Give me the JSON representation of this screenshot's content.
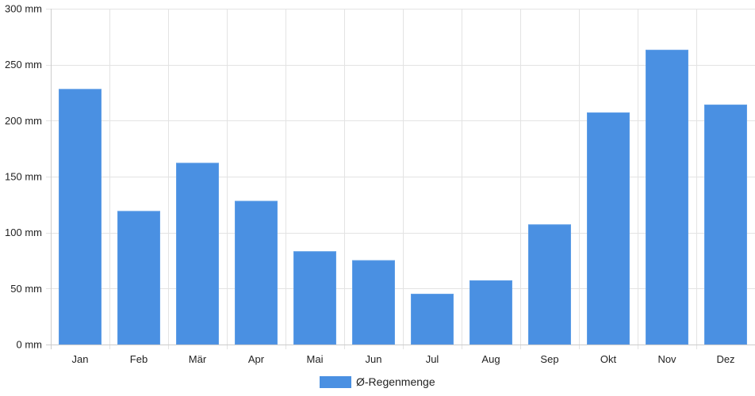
{
  "chart_data": {
    "type": "bar",
    "categories": [
      "Jan",
      "Feb",
      "Mär",
      "Apr",
      "Mai",
      "Jun",
      "Jul",
      "Aug",
      "Sep",
      "Okt",
      "Nov",
      "Dez"
    ],
    "series": [
      {
        "name": "Ø-Regenmenge",
        "values": [
          228,
          119,
          162,
          128,
          83,
          75,
          45,
          57,
          107,
          207,
          263,
          214
        ]
      }
    ],
    "y_unit": "mm",
    "ylim": [
      0,
      300
    ],
    "y_ticks": [
      0,
      50,
      100,
      150,
      200,
      250,
      300
    ],
    "y_tick_labels": [
      "0 mm",
      "50 mm",
      "100 mm",
      "150 mm",
      "200 mm",
      "250 mm",
      "300 mm"
    ],
    "grid": true,
    "legend_position": "bottom-center",
    "colors": {
      "bar": "#4a90e2",
      "bar_stroke": "#5d9de6",
      "grid": "#e3e3e3",
      "axis": "#cccccc",
      "text": "#222222"
    }
  }
}
